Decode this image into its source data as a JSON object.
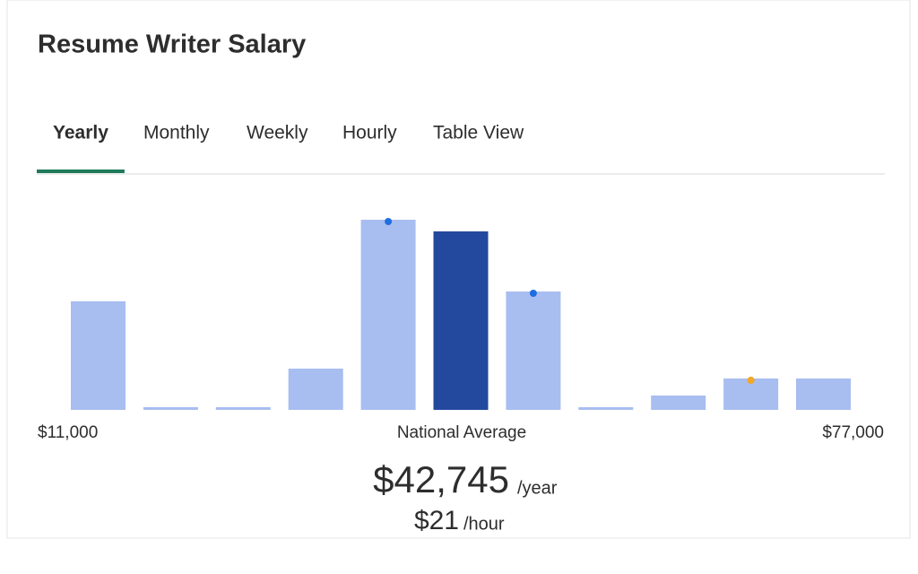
{
  "header": {
    "title": "Resume Writer Salary"
  },
  "tabs": [
    "Yearly",
    "Monthly",
    "Weekly",
    "Hourly",
    "Table View"
  ],
  "active_tab": 0,
  "chart_data": {
    "type": "bar",
    "categories": [
      null,
      null,
      null,
      null,
      null,
      null,
      null,
      null,
      null,
      null,
      null
    ],
    "values": [
      121,
      3,
      3,
      46,
      212,
      199,
      132,
      3,
      16,
      35,
      35
    ],
    "colors": [
      "#a8bdf0",
      "#a8bdf0",
      "#a8bdf0",
      "#a8bdf0",
      "#a8bdf0",
      "#23499e",
      "#a8bdf0",
      "#a8bdf0",
      "#a8bdf0",
      "#a8bdf0",
      "#a8bdf0"
    ],
    "dots": [
      null,
      null,
      null,
      null,
      "#1f6fe0",
      null,
      "#1f6fe0",
      null,
      null,
      "#f5a623",
      null
    ],
    "ylim": [
      0,
      212
    ],
    "start_label": "$11,000",
    "center_label": "National Average",
    "end_label": "$77,000"
  },
  "summary": {
    "yearly": "$42,745",
    "yearly_unit": "/year",
    "hourly": "$21",
    "hourly_unit": "/hour"
  }
}
